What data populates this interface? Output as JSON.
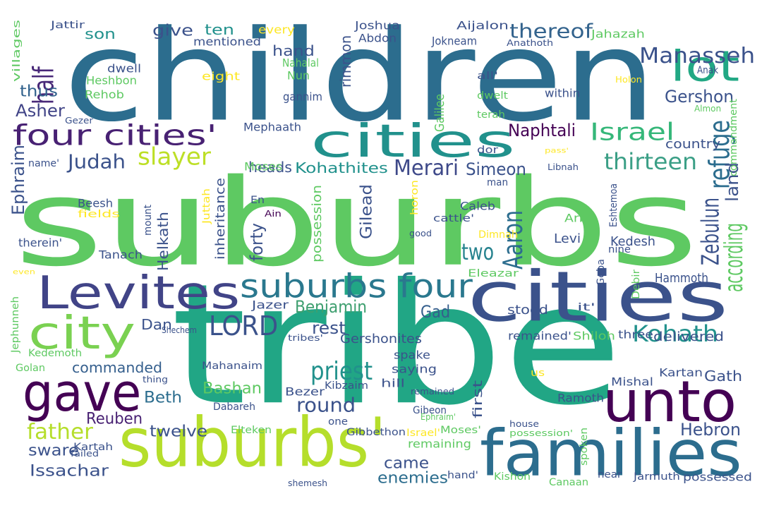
{
  "background": "#ffffff",
  "palette": [
    "#440154",
    "#3b528b",
    "#21918c",
    "#5ec962",
    "#fde725"
  ],
  "words": [
    {
      "id": "suburbs",
      "text": "suburbs",
      "color": "#5ec962"
    },
    {
      "id": "tribe",
      "text": "tribe",
      "color": "#21a685"
    },
    {
      "id": "children",
      "text": "children",
      "color": "#2c6d8e"
    },
    {
      "id": "cities-1",
      "text": "cities",
      "color": "#3b528b"
    },
    {
      "id": "suburbs-apos",
      "text": "suburbs'",
      "color": "#b5de2b"
    },
    {
      "id": "cities-2",
      "text": "cities",
      "color": "#21918c"
    },
    {
      "id": "families",
      "text": "families",
      "color": "#2c6d8e"
    },
    {
      "id": "unto",
      "text": "unto",
      "color": "#440154"
    },
    {
      "id": "gave",
      "text": "gave",
      "color": "#440154"
    },
    {
      "id": "levites",
      "text": "Levites",
      "color": "#414487"
    },
    {
      "id": "lot",
      "text": "lot",
      "color": "#22a884"
    },
    {
      "id": "city",
      "text": "city",
      "color": "#7ad151"
    },
    {
      "id": "four-cities",
      "text": "four cities'",
      "color": "#482173"
    },
    {
      "id": "suburbs-four",
      "text": "suburbs four",
      "color": "#2a788e"
    },
    {
      "id": "manasseh",
      "text": "Manasseh",
      "color": "#3b528b"
    },
    {
      "id": "lord",
      "text": "LORD",
      "color": "#3b528b"
    },
    {
      "id": "priest",
      "text": "priest",
      "color": "#21918c"
    },
    {
      "id": "aaron",
      "text": "Aaron",
      "color": "#2c6d8e"
    },
    {
      "id": "refuge",
      "text": "refuge",
      "color": "#2c6d8e"
    },
    {
      "id": "israel",
      "text": "Israel",
      "color": "#35b779"
    },
    {
      "id": "kohath",
      "text": "Kohath",
      "color": "#21918c"
    },
    {
      "id": "thereof",
      "text": "thereof",
      "color": "#33638d"
    },
    {
      "id": "slayer",
      "text": "slayer",
      "color": "#bddf26"
    },
    {
      "id": "thirteen",
      "text": "thirteen",
      "color": "#3b9f86"
    },
    {
      "id": "merari",
      "text": "Merari",
      "color": "#3e4989"
    },
    {
      "id": "father",
      "text": "father",
      "color": "#b5de2b"
    },
    {
      "id": "half",
      "text": "half",
      "color": "#482878"
    },
    {
      "id": "two",
      "text": "two",
      "color": "#26828e"
    },
    {
      "id": "judah",
      "text": "Judah",
      "color": "#3b528b"
    },
    {
      "id": "round",
      "text": "round",
      "color": "#3b528b"
    },
    {
      "id": "zebulun",
      "text": "Zebulun",
      "color": "#3b528b"
    },
    {
      "id": "naphtali",
      "text": "Naphtali",
      "color": "#440154"
    },
    {
      "id": "simeon",
      "text": "Simeon",
      "color": "#3b528b"
    },
    {
      "id": "benjamin",
      "text": "Benjamin",
      "color": "#3e9f6f"
    },
    {
      "id": "rest",
      "text": "rest",
      "color": "#3b528b"
    },
    {
      "id": "gad",
      "text": "Gad",
      "color": "#355f8d"
    },
    {
      "id": "hebron",
      "text": "Hebron",
      "color": "#3b528b"
    },
    {
      "id": "gershon",
      "text": "Gershon",
      "color": "#3b528b"
    },
    {
      "id": "asher",
      "text": "Asher",
      "color": "#414487"
    },
    {
      "id": "give",
      "text": "give",
      "color": "#3b528b"
    },
    {
      "id": "ten",
      "text": "ten",
      "color": "#21918c"
    },
    {
      "id": "son",
      "text": "son",
      "color": "#21918c"
    },
    {
      "id": "hand",
      "text": "hand",
      "color": "#3b528b"
    },
    {
      "id": "heads",
      "text": "heads",
      "color": "#3b528b"
    },
    {
      "id": "kohathites",
      "text": "Kohathites",
      "color": "#21918c"
    },
    {
      "id": "beth",
      "text": "Beth",
      "color": "#2c6d8e"
    },
    {
      "id": "reuben",
      "text": "Reuben",
      "color": "#482173"
    },
    {
      "id": "twelve",
      "text": "twelve",
      "color": "#3b528b"
    },
    {
      "id": "issachar",
      "text": "Issachar",
      "color": "#3b528b"
    },
    {
      "id": "sware",
      "text": "sware",
      "color": "#3b528b"
    },
    {
      "id": "bashan",
      "text": "Bashan",
      "color": "#5ec962"
    },
    {
      "id": "commanded",
      "text": "commanded",
      "color": "#355f8d"
    },
    {
      "id": "came",
      "text": "came",
      "color": "#3b528b"
    },
    {
      "id": "enemies",
      "text": "enemies",
      "color": "#2c6d8e"
    },
    {
      "id": "dan",
      "text": "Dan",
      "color": "#3b528b"
    },
    {
      "id": "gath",
      "text": "Gath",
      "color": "#3b528b"
    },
    {
      "id": "according",
      "text": "according",
      "color": "#5ec962"
    },
    {
      "id": "land",
      "text": "land",
      "color": "#3b528b"
    },
    {
      "id": "country",
      "text": "country",
      "color": "#3b528b"
    },
    {
      "id": "thus",
      "text": "thus",
      "color": "#33638d"
    },
    {
      "id": "ephraim",
      "text": "Ephraim",
      "color": "#3b528b"
    },
    {
      "id": "gershonites",
      "text": "Gershonites",
      "color": "#3b528b"
    },
    {
      "id": "gilead",
      "text": "Gilead",
      "color": "#3b528b"
    },
    {
      "id": "kedesh",
      "text": "Kedesh",
      "color": "#3b528b"
    },
    {
      "id": "levi",
      "text": "Levi",
      "color": "#3b528b"
    },
    {
      "id": "forty",
      "text": "forty",
      "color": "#3b528b"
    },
    {
      "id": "inheritance",
      "text": "inheritance",
      "color": "#3b528b"
    },
    {
      "id": "possession",
      "text": "possession",
      "color": "#5ec962"
    },
    {
      "id": "helkath",
      "text": "Helkath",
      "color": "#3b528b"
    },
    {
      "id": "rimmon",
      "text": "rimmon",
      "color": "#3b528b"
    },
    {
      "id": "hammoth",
      "text": "Hammoth",
      "color": "#3b528b"
    },
    {
      "id": "kartan",
      "text": "Kartan",
      "color": "#3b528b"
    },
    {
      "id": "mishal",
      "text": "Mishal",
      "color": "#3b528b"
    },
    {
      "id": "ramoth",
      "text": "Ramoth",
      "color": "#3b528b"
    },
    {
      "id": "spake",
      "text": "spake",
      "color": "#3b528b"
    },
    {
      "id": "saying",
      "text": "saying",
      "color": "#3b528b"
    },
    {
      "id": "stood",
      "text": "stood",
      "color": "#3b528b"
    },
    {
      "id": "delivered",
      "text": "delivered",
      "color": "#3b528b"
    },
    {
      "id": "three",
      "text": "three",
      "color": "#3b528b"
    },
    {
      "id": "hill",
      "text": "hill",
      "color": "#3b528b"
    },
    {
      "id": "caleb",
      "text": "Caleb",
      "color": "#3b528b"
    },
    {
      "id": "arba",
      "text": "Arba",
      "color": "#5ec962"
    },
    {
      "id": "mahanaim",
      "text": "Mahanaim",
      "color": "#3b528b"
    },
    {
      "id": "bezer",
      "text": "Bezer",
      "color": "#3b528b"
    },
    {
      "id": "jazer",
      "text": "Jazer",
      "color": "#3b528b"
    },
    {
      "id": "dabareh",
      "text": "Dabareh",
      "color": "#3b528b"
    },
    {
      "id": "kibzaim",
      "text": "Kibzaim",
      "color": "#3b528b"
    },
    {
      "id": "one",
      "text": "one",
      "color": "#3b528b"
    },
    {
      "id": "gibbethon",
      "text": "Gibbethon",
      "color": "#3b528b"
    },
    {
      "id": "elteken",
      "text": "Elteken",
      "color": "#5ec962"
    },
    {
      "id": "golan",
      "text": "Golan",
      "color": "#5ec962"
    },
    {
      "id": "kartah",
      "text": "Kartah",
      "color": "#3b528b"
    },
    {
      "id": "kishon",
      "text": "Kishon",
      "color": "#5ec962"
    },
    {
      "id": "canaan",
      "text": "Canaan",
      "color": "#5ec962"
    },
    {
      "id": "jarmuth",
      "text": "Jarmuth",
      "color": "#3b528b"
    },
    {
      "id": "possessed",
      "text": "possessed",
      "color": "#3b528b"
    },
    {
      "id": "near",
      "text": "near",
      "color": "#3b528b"
    },
    {
      "id": "first",
      "text": "first",
      "color": "#3b528b"
    },
    {
      "id": "remaining",
      "text": "remaining",
      "color": "#5ec962"
    },
    {
      "id": "moses-apos",
      "text": "Moses'",
      "color": "#5ec962"
    },
    {
      "id": "hand-apos",
      "text": "hand'",
      "color": "#3b528b"
    },
    {
      "id": "israel-apos",
      "text": "Israel'",
      "color": "#fde725"
    },
    {
      "id": "remained-apos",
      "text": "remained'",
      "color": "#3b528b"
    },
    {
      "id": "shiloh",
      "text": "Shiloh",
      "color": "#5ec962"
    },
    {
      "id": "eleazar",
      "text": "Eleazar",
      "color": "#5ec962"
    },
    {
      "id": "dimnah",
      "text": "Dimnah",
      "color": "#fde725"
    },
    {
      "id": "cattle",
      "text": "cattle'",
      "color": "#3b528b"
    },
    {
      "id": "tanach",
      "text": "Tanach",
      "color": "#3b528b"
    },
    {
      "id": "kedemoth",
      "text": "Kedemoth",
      "color": "#5ec962"
    },
    {
      "id": "jephunneh",
      "text": "Jephunneh",
      "color": "#5ec962"
    },
    {
      "id": "shechem",
      "text": "Shechem",
      "color": "#3b528b"
    },
    {
      "id": "tribes-apos",
      "text": "tribes'",
      "color": "#3b528b"
    },
    {
      "id": "thing",
      "text": "thing",
      "color": "#3b528b"
    },
    {
      "id": "failed",
      "text": "failed",
      "color": "#3b528b"
    },
    {
      "id": "shemesh",
      "text": "shemesh",
      "color": "#3b528b"
    },
    {
      "id": "ephraim-apos",
      "text": "Ephraim'",
      "color": "#5ec962"
    },
    {
      "id": "gibeon",
      "text": "Gibeon",
      "color": "#3b528b"
    },
    {
      "id": "remained",
      "text": "remained",
      "color": "#3b528b"
    },
    {
      "id": "us",
      "text": "us",
      "color": "#fde725"
    },
    {
      "id": "house",
      "text": "house",
      "color": "#3b528b"
    },
    {
      "id": "possession-apos",
      "text": "possession'",
      "color": "#5ec962"
    },
    {
      "id": "spoken",
      "text": "spoken",
      "color": "#5ec962"
    },
    {
      "id": "beesh",
      "text": "Beesh",
      "color": "#3b528b"
    },
    {
      "id": "fields",
      "text": "fields",
      "color": "#fde725"
    },
    {
      "id": "therein",
      "text": "therein'",
      "color": "#3b528b"
    },
    {
      "id": "even",
      "text": "even",
      "color": "#fde725"
    },
    {
      "id": "mount",
      "text": "mount",
      "color": "#3b528b"
    },
    {
      "id": "juttah",
      "text": "Juttah",
      "color": "#fde725"
    },
    {
      "id": "en",
      "text": "En",
      "color": "#3b528b"
    },
    {
      "id": "ain",
      "text": "Ain",
      "color": "#440154"
    },
    {
      "id": "moses",
      "text": "Moses",
      "color": "#5ec962"
    },
    {
      "id": "name-apos",
      "text": "name'",
      "color": "#3b528b"
    },
    {
      "id": "mephaath",
      "text": "Mephaath",
      "color": "#3b528b"
    },
    {
      "id": "horon",
      "text": "horon",
      "color": "#fde725"
    },
    {
      "id": "good",
      "text": "good",
      "color": "#3b528b"
    },
    {
      "id": "dor",
      "text": "dor",
      "color": "#3b528b"
    },
    {
      "id": "galilee",
      "text": "Galilee",
      "color": "#5ec962"
    },
    {
      "id": "terah",
      "text": "terah",
      "color": "#5ec962"
    },
    {
      "id": "dwelt",
      "text": "dwelt",
      "color": "#5ec962"
    },
    {
      "id": "all-apos",
      "text": "all'",
      "color": "#3b528b"
    },
    {
      "id": "man",
      "text": "man",
      "color": "#3b528b"
    },
    {
      "id": "it-apos",
      "text": "it'",
      "color": "#3b528b"
    },
    {
      "id": "pass-apos",
      "text": "pass'",
      "color": "#fde725"
    },
    {
      "id": "libnah",
      "text": "Libnah",
      "color": "#3b528b"
    },
    {
      "id": "eshtemoa",
      "text": "Eshtemoa",
      "color": "#3b528b"
    },
    {
      "id": "nine",
      "text": "nine",
      "color": "#3b528b"
    },
    {
      "id": "geba",
      "text": "Geba",
      "color": "#3b528b"
    },
    {
      "id": "debir",
      "text": "Debir",
      "color": "#5ec962"
    },
    {
      "id": "within",
      "text": "within",
      "color": "#3b528b"
    },
    {
      "id": "commandment",
      "text": "commandment",
      "color": "#5ec962"
    },
    {
      "id": "almon",
      "text": "Almon",
      "color": "#5ec962"
    },
    {
      "id": "holon",
      "text": "Holon",
      "color": "#fde725"
    },
    {
      "id": "anak",
      "text": "Anak",
      "color": "#3b528b"
    },
    {
      "id": "anathoth",
      "text": "Anathoth",
      "color": "#3b528b"
    },
    {
      "id": "jahazah",
      "text": "Jahazah",
      "color": "#5ec962"
    },
    {
      "id": "aijalon",
      "text": "Aijalon",
      "color": "#3b528b"
    },
    {
      "id": "joshua",
      "text": "Joshua",
      "color": "#3b528b"
    },
    {
      "id": "abdon",
      "text": "Abdon",
      "color": "#3b528b"
    },
    {
      "id": "jokneam",
      "text": "Jokneam",
      "color": "#3b528b"
    },
    {
      "id": "every",
      "text": "every",
      "color": "#fde725"
    },
    {
      "id": "mentioned",
      "text": "mentioned",
      "color": "#3b528b"
    },
    {
      "id": "nahalal",
      "text": "Nahalal",
      "color": "#5ec962"
    },
    {
      "id": "nun",
      "text": "Nun",
      "color": "#5ec962"
    },
    {
      "id": "eight",
      "text": "eight",
      "color": "#fde725"
    },
    {
      "id": "gannim",
      "text": "gannim",
      "color": "#3b528b"
    },
    {
      "id": "dwell",
      "text": "dwell",
      "color": "#3b528b"
    },
    {
      "id": "heshbon",
      "text": "Heshbon",
      "color": "#5ec962"
    },
    {
      "id": "rehob",
      "text": "Rehob",
      "color": "#5ec962"
    },
    {
      "id": "villages",
      "text": "villages",
      "color": "#5ec962"
    },
    {
      "id": "jattir",
      "text": "Jattir",
      "color": "#3b528b"
    },
    {
      "id": "gezer",
      "text": "Gezer",
      "color": "#3b528b"
    }
  ]
}
